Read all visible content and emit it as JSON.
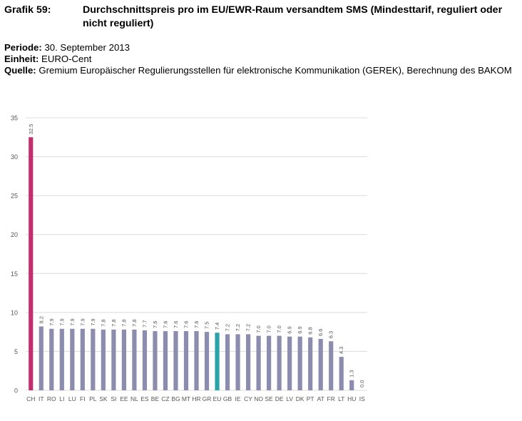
{
  "header": {
    "grafik_label": "Grafik 59:",
    "title": "Durchschnittspreis pro im EU/EWR-Raum versandtem SMS (Mindesttarif, reguliert oder nicht reguliert)",
    "periode_label": "Periode:",
    "periode_value": "30. September 2013",
    "einheit_label": "Einheit:",
    "einheit_value": "EURO-Cent",
    "quelle_label": "Quelle:",
    "quelle_value": "Gremium Europäischer Regulierungsstellen für elektronische Kommunikation (GEREK), Berechnung des BAKOM"
  },
  "chart_data": {
    "type": "bar",
    "categories": [
      "CH",
      "IT",
      "RO",
      "LI",
      "LU",
      "FI",
      "PL",
      "SK",
      "SI",
      "EE",
      "NL",
      "ES",
      "BE",
      "CZ",
      "BG",
      "MT",
      "HR",
      "GR",
      "EU",
      "GB",
      "IE",
      "CY",
      "NO",
      "SE",
      "DE",
      "LV",
      "DK",
      "PT",
      "AT",
      "FR",
      "LT",
      "HU",
      "IS"
    ],
    "values": [
      32.5,
      8.2,
      7.9,
      7.9,
      7.9,
      7.9,
      7.9,
      7.8,
      7.8,
      7.8,
      7.8,
      7.7,
      7.6,
      7.6,
      7.6,
      7.6,
      7.6,
      7.5,
      7.4,
      7.2,
      7.2,
      7.2,
      7.0,
      7.0,
      7.0,
      6.9,
      6.9,
      6.8,
      6.6,
      6.3,
      4.3,
      1.3,
      0.0
    ],
    "data_labels": [
      "32.5",
      "8.2",
      "7.9",
      "7.9",
      "7.9",
      "7.9",
      "7.9",
      "7.8",
      "7.8",
      "7.8",
      "7.8",
      "7.7",
      "7.6",
      "7.6",
      "7.6",
      "7.6",
      "7.6",
      "7.5",
      "7.4",
      "7.2",
      "7.2",
      "7.2",
      "7.0",
      "7.0",
      "7.0",
      "6.9",
      "6.9",
      "6.8",
      "6.6",
      "6.3",
      "4.3",
      "1.3",
      "0.0"
    ],
    "yticks": [
      "0",
      "5",
      "10",
      "15",
      "20",
      "25",
      "30",
      "35"
    ],
    "ylim": [
      0,
      35
    ],
    "grid": true,
    "colors": {
      "default": "#8c8cae",
      "CH": "#c0306e",
      "EU": "#2aa3a8",
      "grid": "#dcdcdc",
      "axis_text": "#555555"
    }
  }
}
